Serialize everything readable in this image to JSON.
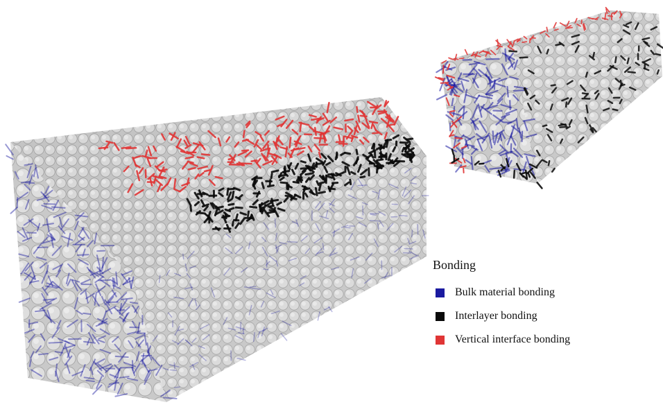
{
  "legend": {
    "title": "Bonding",
    "items": [
      {
        "label": "Bulk material bonding",
        "color": "#1a1aa0"
      },
      {
        "label": "Interlayer bonding",
        "color": "#0a0a0a"
      },
      {
        "label": "Vertical interface bonding",
        "color": "#e03535"
      }
    ]
  }
}
